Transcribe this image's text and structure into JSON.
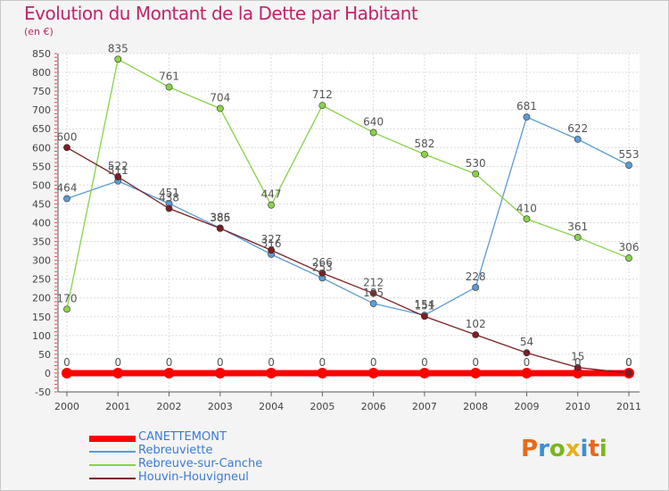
{
  "chart_data": {
    "type": "line",
    "title": "Evolution du Montant de la Dette par Habitant",
    "unit": "(en €)",
    "x": [
      "2000",
      "2001",
      "2002",
      "2003",
      "2004",
      "2005",
      "2006",
      "2007",
      "2008",
      "2009",
      "2010",
      "2011"
    ],
    "ylim": [
      -50,
      850
    ],
    "yticks": [
      -50,
      0,
      50,
      100,
      150,
      200,
      250,
      300,
      350,
      400,
      450,
      500,
      550,
      600,
      650,
      700,
      750,
      800,
      850
    ],
    "grid": true,
    "legend_position": "bottom-left",
    "series": [
      {
        "name": "CANETTEMONT",
        "color": "#ff0000",
        "values": [
          0,
          0,
          0,
          0,
          0,
          0,
          0,
          0,
          0,
          0,
          0,
          0
        ]
      },
      {
        "name": "Rebreuviette",
        "color": "#5b9bd5",
        "values": [
          464,
          511,
          451,
          386,
          316,
          253,
          185,
          154,
          228,
          681,
          622,
          553
        ]
      },
      {
        "name": "Rebreuve-sur-Canche",
        "color": "#8ad24a",
        "values": [
          170,
          835,
          761,
          704,
          447,
          712,
          640,
          582,
          530,
          410,
          361,
          306
        ]
      },
      {
        "name": "Houvin-Houvigneul",
        "color": "#7a1f24",
        "values": [
          600,
          522,
          438,
          385,
          327,
          266,
          212,
          151,
          102,
          54,
          15,
          0
        ]
      }
    ]
  },
  "logo": {
    "text": "Proxiti",
    "colors": [
      "#e86a1a",
      "#3a8fd6",
      "#7ab51d",
      "#e8b01a",
      "#3a8fd6",
      "#e8661a",
      "#7ab51d"
    ]
  }
}
